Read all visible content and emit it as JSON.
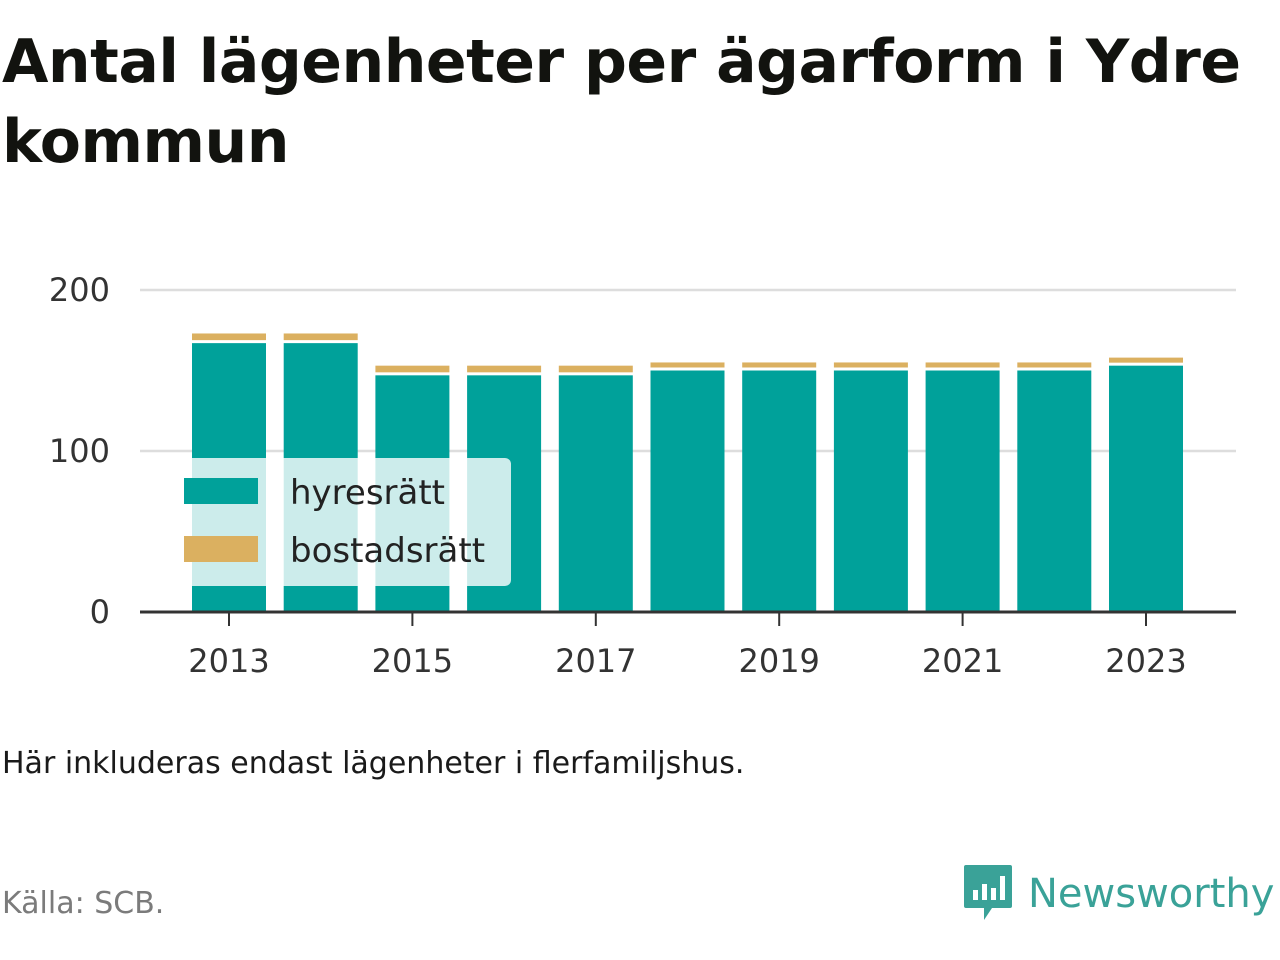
{
  "title": "Antal lägenheter per ägarform i Ydre kommun",
  "note": "Här inkluderas endast lägenheter i flerfamiljshus.",
  "source": "Källa: SCB.",
  "brand": {
    "name": "Newsworthy",
    "icon": "newsworthy-logo-icon",
    "color": "#3aa298"
  },
  "chart_data": {
    "type": "bar",
    "stacked": true,
    "x": [
      2013,
      2014,
      2015,
      2016,
      2017,
      2018,
      2019,
      2020,
      2021,
      2022,
      2023
    ],
    "x_tick_labels": [
      "2013",
      "2015",
      "2017",
      "2019",
      "2021",
      "2023"
    ],
    "ylim": [
      0,
      200
    ],
    "y_ticks": [
      0,
      100,
      200
    ],
    "grid": true,
    "legend_position": "bottom-left",
    "series": [
      {
        "name": "hyresrätt",
        "color": "#00a19a",
        "values": [
          167,
          167,
          147,
          147,
          147,
          150,
          150,
          150,
          150,
          150,
          153
        ]
      },
      {
        "name": "bostadsrätt",
        "color": "#dbb060",
        "values": [
          6,
          6,
          6,
          6,
          6,
          5,
          5,
          5,
          5,
          5,
          5
        ]
      }
    ]
  }
}
